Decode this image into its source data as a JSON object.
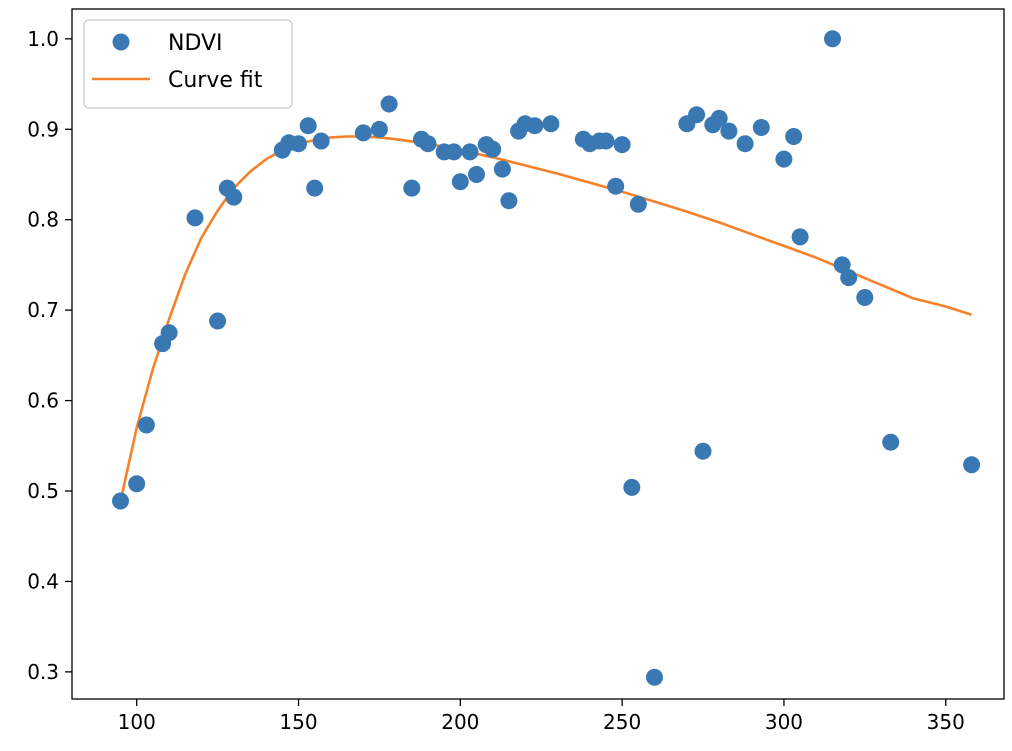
{
  "chart_data": {
    "type": "scatter",
    "title": "",
    "xlabel": "",
    "ylabel": "",
    "xlim": [
      80,
      368
    ],
    "ylim": [
      0.27,
      1.033
    ],
    "x_ticks": [
      "100",
      "150",
      "200",
      "250",
      "300",
      "350"
    ],
    "y_ticks": [
      "0.3",
      "0.4",
      "0.5",
      "0.6",
      "0.7",
      "0.8",
      "0.9",
      "1.0"
    ],
    "grid": false,
    "legend_position": "top-left",
    "series": [
      {
        "name": "NDVI",
        "kind": "scatter",
        "color": "#3a78b4",
        "points": [
          [
            95,
            0.489
          ],
          [
            100,
            0.508
          ],
          [
            103,
            0.573
          ],
          [
            108,
            0.663
          ],
          [
            110,
            0.675
          ],
          [
            118,
            0.802
          ],
          [
            125,
            0.688
          ],
          [
            128,
            0.835
          ],
          [
            130,
            0.825
          ],
          [
            145,
            0.877
          ],
          [
            147,
            0.885
          ],
          [
            150,
            0.884
          ],
          [
            153,
            0.904
          ],
          [
            155,
            0.835
          ],
          [
            157,
            0.887
          ],
          [
            170,
            0.896
          ],
          [
            175,
            0.9
          ],
          [
            178,
            0.928
          ],
          [
            185,
            0.835
          ],
          [
            188,
            0.889
          ],
          [
            190,
            0.884
          ],
          [
            195,
            0.875
          ],
          [
            198,
            0.875
          ],
          [
            200,
            0.842
          ],
          [
            203,
            0.875
          ],
          [
            205,
            0.85
          ],
          [
            208,
            0.883
          ],
          [
            210,
            0.878
          ],
          [
            213,
            0.856
          ],
          [
            215,
            0.821
          ],
          [
            218,
            0.898
          ],
          [
            220,
            0.906
          ],
          [
            223,
            0.904
          ],
          [
            228,
            0.906
          ],
          [
            238,
            0.889
          ],
          [
            240,
            0.884
          ],
          [
            243,
            0.887
          ],
          [
            245,
            0.887
          ],
          [
            248,
            0.837
          ],
          [
            250,
            0.883
          ],
          [
            253,
            0.504
          ],
          [
            255,
            0.817
          ],
          [
            260,
            0.294
          ],
          [
            270,
            0.906
          ],
          [
            273,
            0.916
          ],
          [
            275,
            0.544
          ],
          [
            278,
            0.905
          ],
          [
            280,
            0.912
          ],
          [
            283,
            0.898
          ],
          [
            288,
            0.884
          ],
          [
            293,
            0.902
          ],
          [
            300,
            0.867
          ],
          [
            303,
            0.892
          ],
          [
            305,
            0.781
          ],
          [
            315,
            1.0
          ],
          [
            318,
            0.75
          ],
          [
            320,
            0.736
          ],
          [
            325,
            0.714
          ],
          [
            333,
            0.554
          ],
          [
            358,
            0.529
          ]
        ]
      },
      {
        "name": "Curve fit",
        "kind": "line",
        "color": "#f5822a",
        "points": [
          [
            95,
            0.489
          ],
          [
            100,
            0.57
          ],
          [
            105,
            0.635
          ],
          [
            110,
            0.69
          ],
          [
            115,
            0.74
          ],
          [
            120,
            0.78
          ],
          [
            125,
            0.81
          ],
          [
            130,
            0.835
          ],
          [
            135,
            0.853
          ],
          [
            140,
            0.867
          ],
          [
            145,
            0.877
          ],
          [
            150,
            0.884
          ],
          [
            155,
            0.888
          ],
          [
            160,
            0.891
          ],
          [
            165,
            0.892
          ],
          [
            170,
            0.892
          ],
          [
            175,
            0.891
          ],
          [
            180,
            0.889
          ],
          [
            190,
            0.884
          ],
          [
            200,
            0.877
          ],
          [
            210,
            0.869
          ],
          [
            220,
            0.86
          ],
          [
            230,
            0.851
          ],
          [
            240,
            0.841
          ],
          [
            250,
            0.831
          ],
          [
            260,
            0.82
          ],
          [
            270,
            0.809
          ],
          [
            280,
            0.797
          ],
          [
            290,
            0.784
          ],
          [
            300,
            0.771
          ],
          [
            310,
            0.758
          ],
          [
            320,
            0.743
          ],
          [
            330,
            0.728
          ],
          [
            340,
            0.713
          ],
          [
            350,
            0.704
          ],
          [
            358,
            0.695
          ]
        ]
      }
    ]
  }
}
